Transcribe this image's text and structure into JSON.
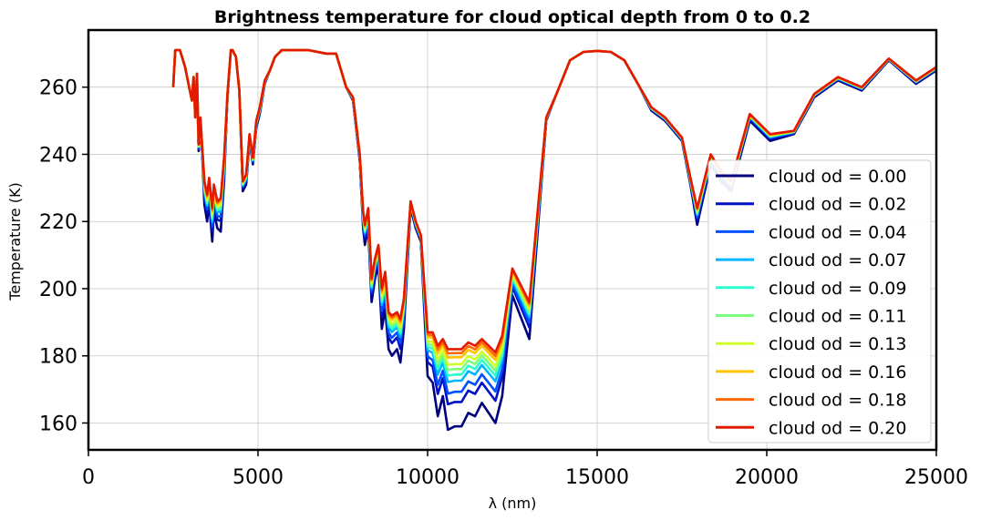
{
  "chart_data": {
    "type": "line",
    "title": "Brightness temperature for cloud optical depth from 0 to 0.2",
    "xlabel": "λ (nm)",
    "ylabel": "Temperature (K)",
    "xlim": [
      0,
      25000
    ],
    "ylim": [
      152,
      277
    ],
    "xticks": [
      0,
      5000,
      10000,
      15000,
      20000,
      25000
    ],
    "yticks": [
      160,
      180,
      200,
      220,
      240,
      260
    ],
    "grid": true,
    "legend_position": "right",
    "x": [
      2500,
      2560,
      2700,
      2850,
      2950,
      3050,
      3100,
      3150,
      3200,
      3250,
      3300,
      3350,
      3420,
      3500,
      3560,
      3650,
      3700,
      3800,
      3900,
      4000,
      4100,
      4200,
      4250,
      4350,
      4450,
      4550,
      4650,
      4750,
      4850,
      4950,
      5050,
      5200,
      5350,
      5500,
      5700,
      6000,
      6500,
      7000,
      7300,
      7600,
      7800,
      8000,
      8100,
      8150,
      8250,
      8350,
      8450,
      8550,
      8650,
      8750,
      8850,
      8950,
      9100,
      9200,
      9300,
      9500,
      9650,
      9800,
      10000,
      10150,
      10300,
      10450,
      10600,
      10800,
      11000,
      11200,
      11400,
      11600,
      11800,
      12000,
      12200,
      12500,
      13000,
      13500,
      13800,
      14200,
      14600,
      15000,
      15400,
      15800,
      16200,
      16600,
      17000,
      17500,
      17750,
      17950,
      18350,
      18650,
      18950,
      19500,
      20100,
      20800,
      21400,
      22100,
      22800,
      23600,
      24400,
      25000
    ],
    "base": [
      260.0,
      271.0,
      271.0,
      266.0,
      261.0,
      256.0,
      263.0,
      251.0,
      264.0,
      241.0,
      249.0,
      241.0,
      225.0,
      220.0,
      226.0,
      214.0,
      223.0,
      218.0,
      217.0,
      232.0,
      257.0,
      271.0,
      271.0,
      269.0,
      259.0,
      229.0,
      231.0,
      244.0,
      237.0,
      248.0,
      252.0,
      261.0,
      265.0,
      269.0,
      271.0,
      271.0,
      271.0,
      270.0,
      270.0,
      260.0,
      256.0,
      238.0,
      218.0,
      213.0,
      218.0,
      196.0,
      203.0,
      207.0,
      188.0,
      194.0,
      182.0,
      180.0,
      182.0,
      178.0,
      188.0,
      224.0,
      218.0,
      214.0,
      174.0,
      172.0,
      162.0,
      168.0,
      158.0,
      159.0,
      159.0,
      163.0,
      162.0,
      166.0,
      163.0,
      160.0,
      168.0,
      198.0,
      185.0,
      250.0,
      258.0,
      268.0,
      270.5,
      270.8,
      270.5,
      268.0,
      261.0,
      253.0,
      250.0,
      244.0,
      231.0,
      219.0,
      237.0,
      232.0,
      229.0,
      250.0,
      244.0,
      246.0,
      257.0,
      262.0,
      259.0,
      268.0,
      261.0,
      265.0
    ],
    "top": [
      260.0,
      271.0,
      271.0,
      266.0,
      261.0,
      256.0,
      263.0,
      251.0,
      264.0,
      243.0,
      251.0,
      243.0,
      232.0,
      228.0,
      233.0,
      224.0,
      231.0,
      226.0,
      227.0,
      239.0,
      258.0,
      271.0,
      271.0,
      269.0,
      259.0,
      232.0,
      234.0,
      246.0,
      239.0,
      250.0,
      254.0,
      262.0,
      265.0,
      269.0,
      271.0,
      271.0,
      271.0,
      270.0,
      270.0,
      260.0,
      257.0,
      240.0,
      223.0,
      219.0,
      224.0,
      203.0,
      209.0,
      213.0,
      200.0,
      205.0,
      193.0,
      192.0,
      193.0,
      191.0,
      197.0,
      226.0,
      220.0,
      216.0,
      187.0,
      187.0,
      183.0,
      185.0,
      182.0,
      182.0,
      182.0,
      184.0,
      183.0,
      185.0,
      183.0,
      181.0,
      186.0,
      206.0,
      196.0,
      251.0,
      258.0,
      268.0,
      270.5,
      270.8,
      270.5,
      268.0,
      261.0,
      254.0,
      251.0,
      245.0,
      233.0,
      224.0,
      240.0,
      235.0,
      232.0,
      252.0,
      246.0,
      247.0,
      258.0,
      263.0,
      260.0,
      268.5,
      262.0,
      266.0
    ],
    "series": [
      {
        "name": "cloud od = 0.00",
        "od": 0.0,
        "color": "#00007f"
      },
      {
        "name": "cloud od = 0.02",
        "od": 0.02,
        "color": "#0011c6"
      },
      {
        "name": "cloud od = 0.04",
        "od": 0.04,
        "color": "#0050ff"
      },
      {
        "name": "cloud od = 0.07",
        "od": 0.07,
        "color": "#00b4ff"
      },
      {
        "name": "cloud od = 0.09",
        "od": 0.09,
        "color": "#29ffce"
      },
      {
        "name": "cloud od = 0.11",
        "od": 0.11,
        "color": "#7dff7a"
      },
      {
        "name": "cloud od = 0.13",
        "od": 0.13,
        "color": "#ceff29"
      },
      {
        "name": "cloud od = 0.16",
        "od": 0.16,
        "color": "#ffc400"
      },
      {
        "name": "cloud od = 0.18",
        "od": 0.18,
        "color": "#ff6800"
      },
      {
        "name": "cloud od = 0.20",
        "od": 0.2,
        "color": "#e31a00"
      }
    ]
  }
}
